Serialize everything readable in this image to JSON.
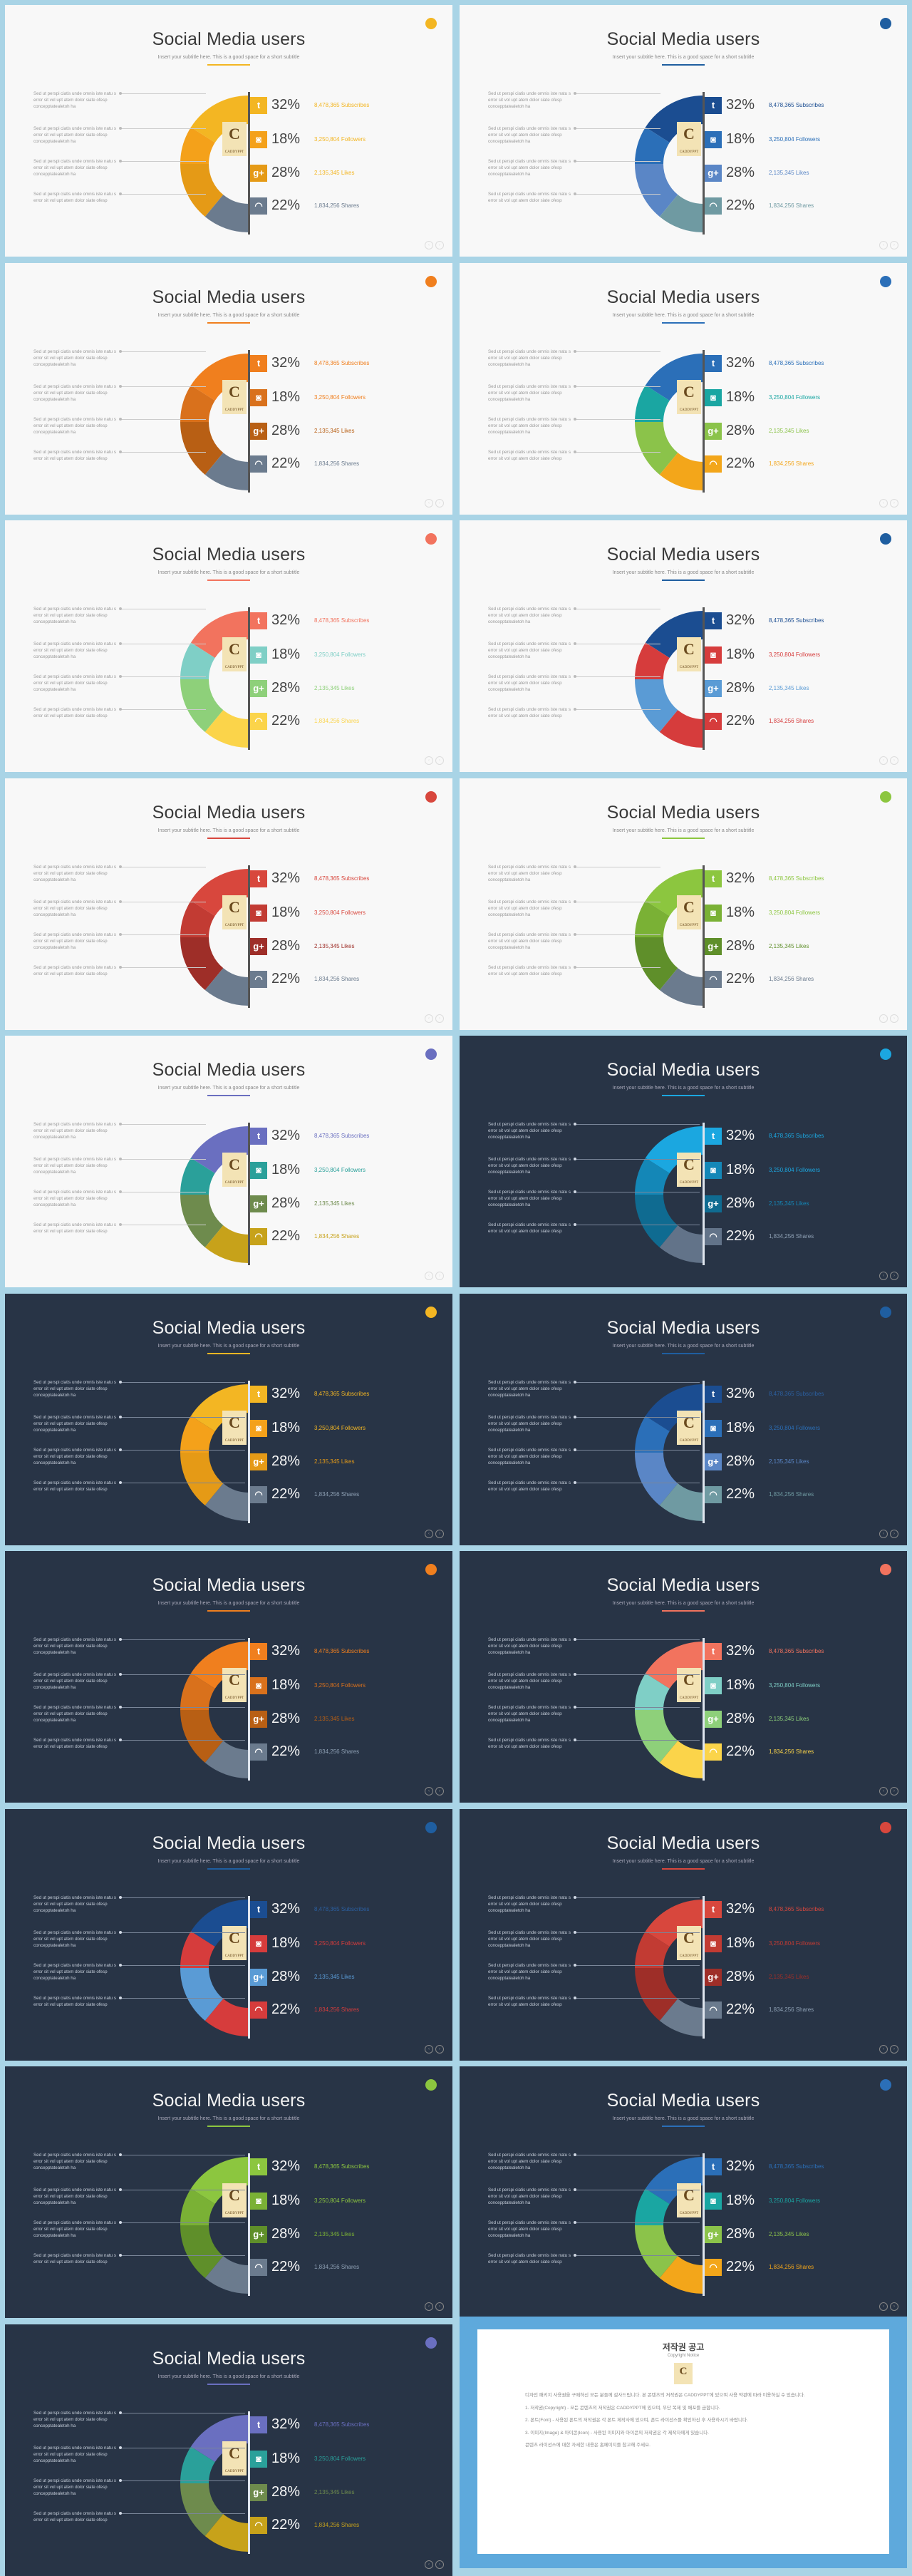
{
  "title": "Social Media users",
  "subtitle": "Insert your subtitle here. This is a good space for a short subtitle",
  "descriptions": [
    "Sed ut perspi ciatis unde omnis iste natu s error sit vol upt atem dolor siate ofesp concepptatealetoh ha",
    "Sed ut perspi ciatis unde omnis iste natu s error sit vol upt atem dolor siate ofesp concepptatealetoh ha",
    "Sed ut perspi ciatis unde omnis iste natu s error sit vol upt atem dolor siate ofesp concepptatealetoh ha",
    "Sed ut perspi ciatis unde omnis iste natu s error sit vol upt atem dolor siate ofesp"
  ],
  "stats": [
    {
      "icon": "twitter-icon",
      "glyph": "t",
      "pct": "32%",
      "text": "8,478,365 Subscribes"
    },
    {
      "icon": "instagram-icon",
      "glyph": "◙",
      "pct": "18%",
      "text": "3,250,804 Followers"
    },
    {
      "icon": "google-plus-icon",
      "glyph": "g+",
      "pct": "28%",
      "text": "2,135,345 Likes"
    },
    {
      "icon": "rss-icon",
      "glyph": "◠",
      "pct": "22%",
      "text": "1,834,256 Shares"
    }
  ],
  "logo": {
    "letter": "C",
    "caption": "CADDYPPT"
  },
  "nav": {
    "prev": "‹",
    "next": "›"
  },
  "slides": [
    {
      "theme": "light",
      "accent": "#f3b623",
      "colors": [
        "#f3b623",
        "#f4a11a",
        "#e59a16",
        "#6b7b8e"
      ],
      "textColors": [
        "#f3b623",
        "#f3b623",
        "#f3b623",
        "#6b7b8e"
      ]
    },
    {
      "theme": "light",
      "accent": "#1f5ea0",
      "colors": [
        "#1b4d91",
        "#2b6fb8",
        "#5a86c6",
        "#6f9aa2"
      ],
      "textColors": [
        "#1b4d91",
        "#2b6fb8",
        "#5a86c6",
        "#6f9aa2"
      ]
    },
    {
      "theme": "light",
      "accent": "#f07f1e",
      "colors": [
        "#f07f1e",
        "#d9711c",
        "#b85f14",
        "#6b7b8e"
      ],
      "textColors": [
        "#f07f1e",
        "#f07f1e",
        "#b85f14",
        "#6b7b8e"
      ]
    },
    {
      "theme": "light",
      "accent": "#2b6fb8",
      "colors": [
        "#2b6fb8",
        "#1aa6a2",
        "#8bc34a",
        "#f3a61a"
      ],
      "textColors": [
        "#2b6fb8",
        "#1aa6a2",
        "#8bc34a",
        "#f3a61a"
      ]
    },
    {
      "theme": "light",
      "accent": "#f2735e",
      "colors": [
        "#f2735e",
        "#7fcfc6",
        "#8ed07a",
        "#fbd44a"
      ],
      "textColors": [
        "#f2735e",
        "#7fcfc6",
        "#8ed07a",
        "#fbd44a"
      ]
    },
    {
      "theme": "light",
      "accent": "#1f5ea0",
      "colors": [
        "#1b4d91",
        "#d63c3c",
        "#5a9bd5",
        "#d63c3c"
      ],
      "textColors": [
        "#1b4d91",
        "#d63c3c",
        "#5a9bd5",
        "#d63c3c"
      ]
    },
    {
      "theme": "light",
      "accent": "#d8473d",
      "colors": [
        "#d8473d",
        "#c23b33",
        "#9e2e28",
        "#6b7b8e"
      ],
      "textColors": [
        "#d8473d",
        "#d8473d",
        "#9e2e28",
        "#6b7b8e"
      ]
    },
    {
      "theme": "light",
      "accent": "#8cc63f",
      "colors": [
        "#8cc63f",
        "#7ab135",
        "#5f8f2a",
        "#6b7b8e"
      ],
      "textColors": [
        "#8cc63f",
        "#8cc63f",
        "#5f8f2a",
        "#6b7b8e"
      ]
    },
    {
      "theme": "light",
      "accent": "#6a6fc0",
      "colors": [
        "#6a6fc0",
        "#2aa09a",
        "#6e8b4d",
        "#c7a21a"
      ],
      "textColors": [
        "#6a6fc0",
        "#2aa09a",
        "#6e8b4d",
        "#c7a21a"
      ]
    },
    {
      "theme": "dark",
      "accent": "#1ba7e0",
      "colors": [
        "#1ba7e0",
        "#1487b7",
        "#0f6b91",
        "#627389"
      ],
      "textColors": [
        "#1ba7e0",
        "#1ba7e0",
        "#1487b7",
        "#8ea0b4"
      ]
    },
    {
      "theme": "dark",
      "accent": "#f3b623",
      "colors": [
        "#f3b623",
        "#f4a11a",
        "#e59a16",
        "#6b7b8e"
      ],
      "textColors": [
        "#f3b623",
        "#f3b623",
        "#e59a16",
        "#8ea0b4"
      ]
    },
    {
      "theme": "dark",
      "accent": "#1f5ea0",
      "colors": [
        "#1b4d91",
        "#2b6fb8",
        "#5a86c6",
        "#6f9aa2"
      ],
      "textColors": [
        "#2b5fa0",
        "#2b6fb8",
        "#5a86c6",
        "#6f9aa2"
      ]
    },
    {
      "theme": "dark",
      "accent": "#f07f1e",
      "colors": [
        "#f07f1e",
        "#d9711c",
        "#b85f14",
        "#6b7b8e"
      ],
      "textColors": [
        "#f07f1e",
        "#d9711c",
        "#b85f14",
        "#8ea0b4"
      ]
    },
    {
      "theme": "dark",
      "accent": "#f2735e",
      "colors": [
        "#f2735e",
        "#7fcfc6",
        "#8ed07a",
        "#fbd44a"
      ],
      "textColors": [
        "#f2735e",
        "#7fcfc6",
        "#8ed07a",
        "#fbd44a"
      ]
    },
    {
      "theme": "dark",
      "accent": "#1f5ea0",
      "colors": [
        "#1b4d91",
        "#d63c3c",
        "#5a9bd5",
        "#d63c3c"
      ],
      "textColors": [
        "#2b5fa0",
        "#d63c3c",
        "#5a9bd5",
        "#d63c3c"
      ]
    },
    {
      "theme": "dark",
      "accent": "#d8473d",
      "colors": [
        "#d8473d",
        "#c23b33",
        "#9e2e28",
        "#6b7b8e"
      ],
      "textColors": [
        "#d8473d",
        "#c23b33",
        "#9e2e28",
        "#8ea0b4"
      ]
    },
    {
      "theme": "dark",
      "accent": "#8cc63f",
      "colors": [
        "#8cc63f",
        "#7ab135",
        "#5f8f2a",
        "#6b7b8e"
      ],
      "textColors": [
        "#8cc63f",
        "#8cc63f",
        "#7ab135",
        "#8ea0b4"
      ]
    },
    {
      "theme": "dark",
      "accent": "#2b6fb8",
      "colors": [
        "#2b6fb8",
        "#1aa6a2",
        "#8bc34a",
        "#f3a61a"
      ],
      "textColors": [
        "#2b6fb8",
        "#1aa6a2",
        "#8bc34a",
        "#f3a61a"
      ]
    },
    {
      "theme": "dark",
      "accent": "#6a6fc0",
      "colors": [
        "#6a6fc0",
        "#2aa09a",
        "#6e8b4d",
        "#c7a21a"
      ],
      "textColors": [
        "#6a6fc0",
        "#2aa09a",
        "#6e8b4d",
        "#c7a21a"
      ]
    }
  ],
  "notice": {
    "title": "저작권 공고",
    "subtitle": "Copyright Notice",
    "paragraphs": [
      "디자인 패키지 사용권을 구매하신 모든 분들께 감사드립니다. 본 콘텐츠의 저작권은 CADDYPPT에 있으며 사용 약관에 따라 이용하실 수 있습니다.",
      "1. 저작권(Copyright) - 모든 콘텐츠의 저작권은 CADDYPPT에 있으며, 무단 복제 및 배포를 금합니다.",
      "2. 폰트(Font) - 사용된 폰트의 저작권은 각 폰트 제작사에 있으며, 폰트 라이선스를 확인하신 후 사용하시기 바랍니다.",
      "3. 이미지(Image) & 아이콘(Icon) - 사용된 이미지와 아이콘의 저작권은 각 제작자에게 있습니다.",
      "콘텐츠 라이선스에 대한 자세한 내용은 홈페이지를 참고해 주세요."
    ]
  }
}
